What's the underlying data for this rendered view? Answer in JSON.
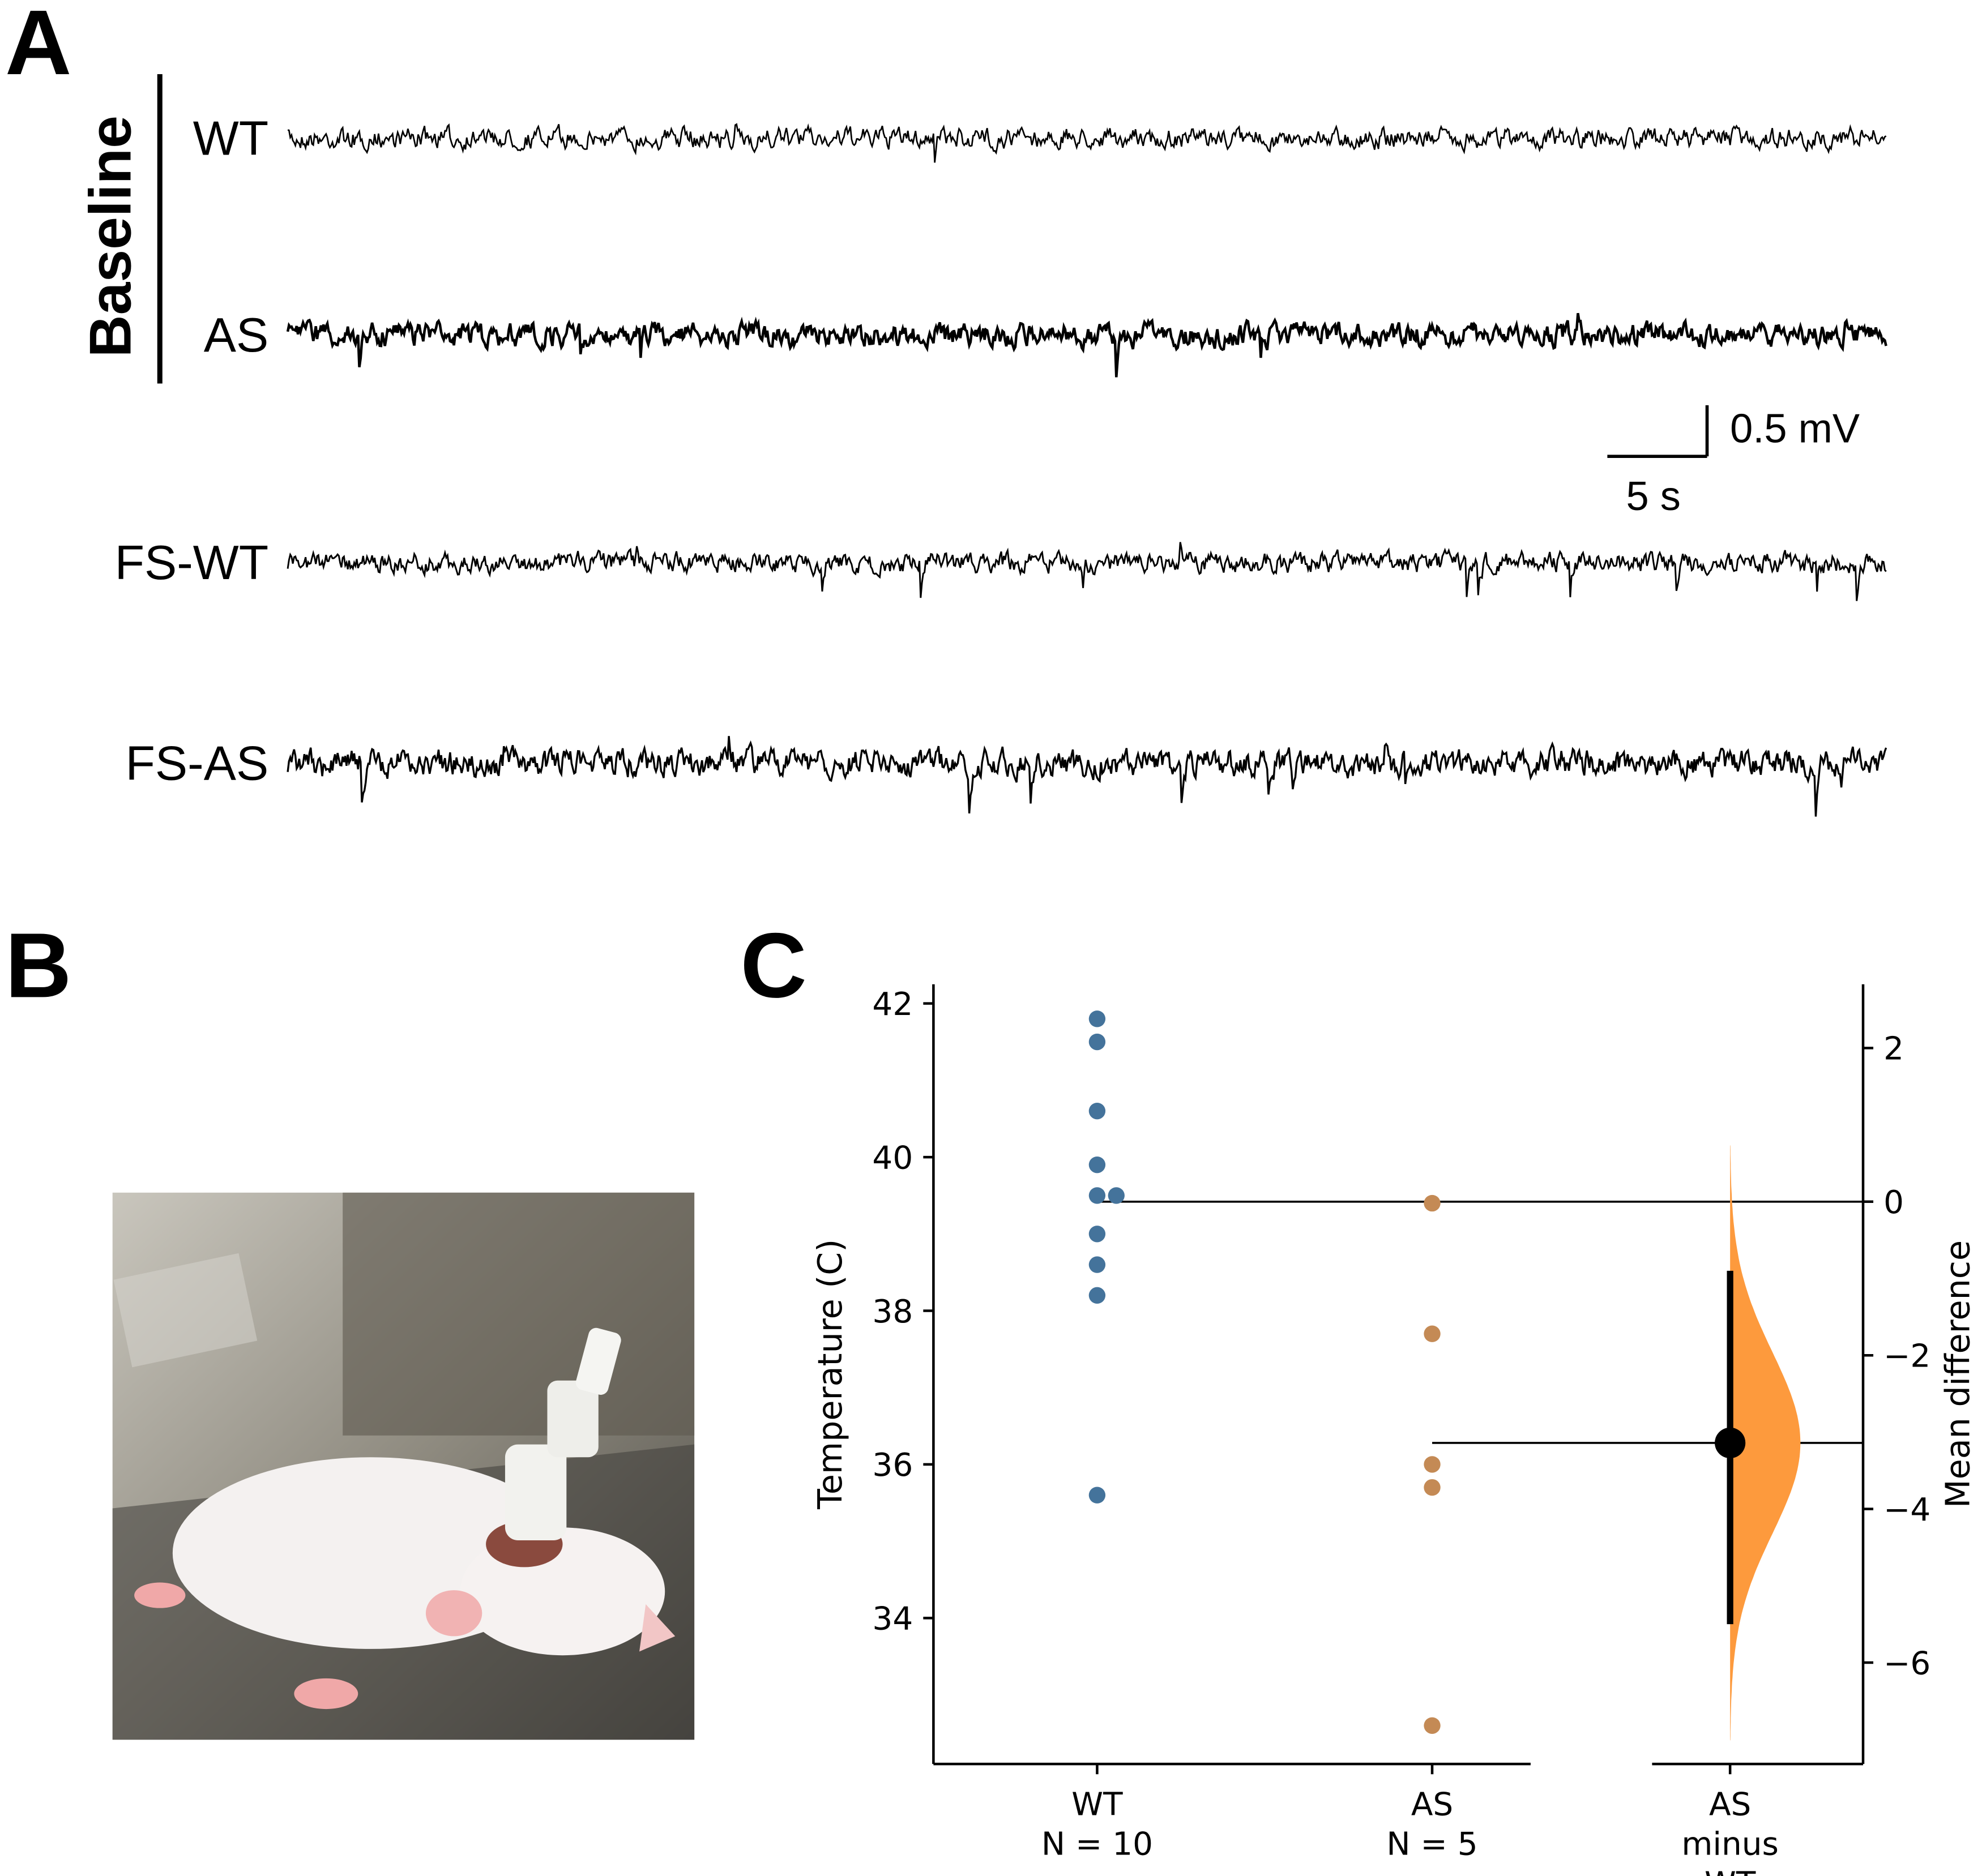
{
  "panel_a": {
    "label": "A",
    "group_label": "Baseline",
    "traces": [
      "WT",
      "AS",
      "FS-WT",
      "FS-AS"
    ],
    "scale_bar": {
      "vertical": "0.5 mV",
      "horizontal": "5 s"
    }
  },
  "panel_b": {
    "label": "B"
  },
  "panel_c": {
    "label": "C"
  },
  "chart_data": {
    "type": "estimation",
    "y_label": "Temperature (C)",
    "y2_label": "Mean difference",
    "categories": [
      "WT",
      "AS"
    ],
    "n_labels": [
      "N = 10",
      "N = 5"
    ],
    "groups": [
      {
        "color": "#44739b",
        "values": [
          41.8,
          41.5,
          40.6,
          39.9,
          39.5,
          39.5,
          39.0,
          38.6,
          38.2,
          35.6
        ]
      },
      {
        "color": "#c48a55",
        "values": [
          39.4,
          37.7,
          36.0,
          35.7,
          32.6
        ]
      }
    ],
    "difference": {
      "label": [
        "AS",
        "minus",
        "WT"
      ],
      "mean": -3.14,
      "ci": [
        -5.5,
        -0.9
      ],
      "color": "#fd9a3d"
    },
    "ylim": [
      32.1,
      42.25
    ],
    "yticks": [
      34,
      36,
      38,
      40,
      42
    ],
    "y2lim": [
      -7.32,
      2.83
    ],
    "y2ticks": [
      {
        "value": -6,
        "label": "−6"
      },
      {
        "value": -4,
        "label": "−4"
      },
      {
        "value": -2,
        "label": "−2"
      },
      0,
      2
    ]
  }
}
